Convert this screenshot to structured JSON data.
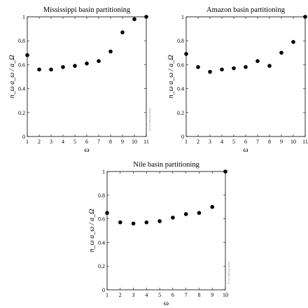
{
  "chart_data": [
    {
      "type": "scatter",
      "title": "Mississippi basin partitioning",
      "xlabel": "ω",
      "ylabel": "n_ω a_ω / a_Ω",
      "xlim": [
        1,
        11
      ],
      "ylim": [
        0,
        1
      ],
      "xticks": [
        "1",
        "2",
        "3",
        "4",
        "5",
        "6",
        "7",
        "8",
        "9",
        "10",
        "11"
      ],
      "yticks": [
        "0",
        "0.2",
        "0.4",
        "0.6",
        "0.8",
        "1"
      ],
      "x": [
        1,
        2,
        3,
        4,
        5,
        6,
        7,
        8,
        9,
        10,
        11
      ],
      "y": [
        0.68,
        0.56,
        0.56,
        0.58,
        0.59,
        0.61,
        0.63,
        0.71,
        0.87,
        0.98,
        1.0
      ],
      "grid": false,
      "stamp": "[15-Dec-2000 peter dodds]"
    },
    {
      "type": "scatter",
      "title": "Amazon basin partitioning",
      "xlabel": "ω",
      "ylabel": "n_ω a_ω / a_Ω",
      "xlim": [
        1,
        11
      ],
      "ylim": [
        0,
        1
      ],
      "xticks": [
        "1",
        "2",
        "3",
        "4",
        "5",
        "6",
        "7",
        "8",
        "9",
        "10",
        "11"
      ],
      "yticks": [
        "0",
        "0.2",
        "0.4",
        "0.6",
        "0.8",
        "1"
      ],
      "x": [
        1,
        2,
        3,
        4,
        5,
        6,
        7,
        8,
        9,
        10,
        11
      ],
      "y": [
        0.69,
        0.58,
        0.54,
        0.56,
        0.57,
        0.58,
        0.63,
        0.59,
        0.7,
        0.79,
        1.0
      ],
      "grid": false,
      "stamp": "[15-Dec-2000 peter dodds]"
    },
    {
      "type": "scatter",
      "title": "Nile basin partitioning",
      "xlabel": "ω",
      "ylabel": "n_ω a_ω / a_Ω",
      "xlim": [
        1,
        10
      ],
      "ylim": [
        0,
        1
      ],
      "xticks": [
        "1",
        "2",
        "3",
        "4",
        "5",
        "6",
        "7",
        "8",
        "9",
        "10"
      ],
      "yticks": [
        "0",
        "0.2",
        "0.4",
        "0.6",
        "0.8",
        "1"
      ],
      "x": [
        1,
        2,
        3,
        4,
        5,
        6,
        7,
        8,
        9,
        10
      ],
      "y": [
        0.65,
        0.57,
        0.56,
        0.57,
        0.58,
        0.61,
        0.64,
        0.65,
        0.7,
        1.0
      ],
      "grid": false,
      "stamp": "[15-Dec-2000 peter dodds]"
    }
  ]
}
